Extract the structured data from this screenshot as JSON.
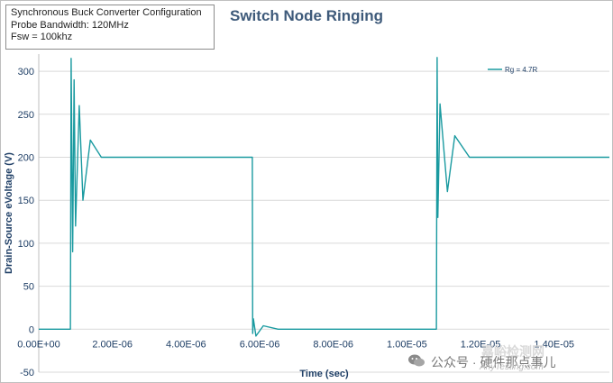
{
  "info_box": {
    "lines": [
      "Synchronous Buck Converter Configuration",
      "Probe Bandwidth: 120MHz",
      "Fsw = 100khz"
    ]
  },
  "chart_data": {
    "type": "line",
    "title": "Switch Node Ringing",
    "xlabel": "Time (sec)",
    "ylabel": "Drain-Source eVoltage (V)",
    "xlim": [
      0,
      1.55e-05
    ],
    "ylim": [
      -50,
      320
    ],
    "y_ticks": [
      -50,
      0,
      50,
      100,
      150,
      200,
      250,
      300
    ],
    "y_tick_labels": [
      "-50",
      "0",
      "50",
      "100",
      "150",
      "200",
      "250",
      "300"
    ],
    "x_ticks": [
      0,
      2e-06,
      4e-06,
      6e-06,
      8e-06,
      1e-05,
      1.2e-05,
      1.4e-05
    ],
    "x_tick_labels": [
      "0.00E+00",
      "2.00E-06",
      "4.00E-06",
      "6.00E-06",
      "8.00E-06",
      "1.00E-05",
      "1.20E-05",
      "1.40E-05"
    ],
    "grid": "horizontal",
    "legend": "top-right",
    "series": [
      {
        "name": "Rg = 4.7R",
        "color": "#1a9aa0",
        "x": [
          0,
          8.6e-07,
          8.8e-07,
          9.2e-07,
          9.6e-07,
          1e-06,
          1.1e-06,
          1.2e-06,
          1.4e-06,
          1.7e-06,
          2.5e-06,
          4e-06,
          5.8e-06,
          5.81e-06,
          5.83e-06,
          5.9e-06,
          6.1e-06,
          6.5e-06,
          8e-06,
          1.08e-05,
          1.082e-05,
          1.084e-05,
          1.09e-05,
          1.11e-05,
          1.13e-05,
          1.17e-05,
          1.2e-05,
          1.4e-05,
          1.55e-05
        ],
        "y": [
          0,
          0,
          315,
          90,
          290,
          120,
          260,
          150,
          220,
          200,
          200,
          200,
          200,
          -5,
          12,
          -8,
          4,
          0,
          0,
          0,
          316,
          130,
          262,
          160,
          225,
          200,
          200,
          200,
          200
        ]
      }
    ]
  },
  "watermark": {
    "cn_text": "公众号 · 硬件那点事儿",
    "en_text": "AnyTesting.com",
    "logo_text": "嘉峪检测网"
  }
}
